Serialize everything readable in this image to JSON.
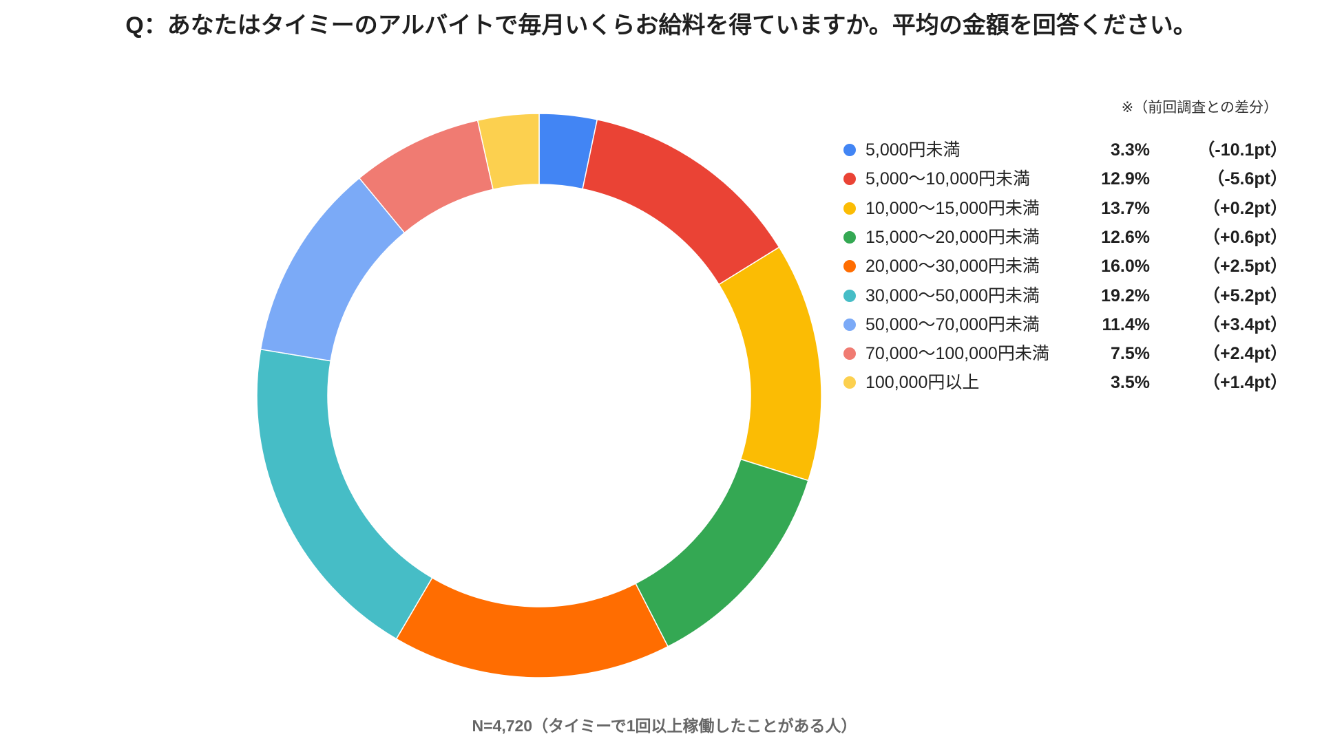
{
  "chart_data": {
    "type": "pie",
    "donut": true,
    "legend_position": "right",
    "title": "Q：あなたはタイミーのアルバイトで毎月いくらお給料を得ていますか。平均の金額を回答ください。",
    "note": "※（前回調査との差分）",
    "footnote": "N=4,720（タイミーで1回以上稼働したことがある人）",
    "categories": [
      "5,000円未満",
      "5,000〜10,000円未満",
      "10,000〜15,000円未満",
      "15,000〜20,000円未満",
      "20,000〜30,000円未満",
      "30,000〜50,000円未満",
      "50,000〜70,000円未満",
      "70,000〜100,000円未満",
      "100,000円以上"
    ],
    "values": [
      3.3,
      12.9,
      13.7,
      12.6,
      16.0,
      19.2,
      11.4,
      7.5,
      3.5
    ],
    "value_labels": [
      "3.3%",
      "12.9%",
      "13.7%",
      "12.6%",
      "16.0%",
      "19.2%",
      "11.4%",
      "7.5%",
      "3.5%"
    ],
    "diff_labels": [
      "（-10.1pt）",
      "（-5.6pt）",
      "（+0.2pt）",
      "（+0.6pt）",
      "（+2.5pt）",
      "（+5.2pt）",
      "（+3.4pt）",
      "（+2.4pt）",
      "（+1.4pt）"
    ],
    "colors": [
      "#4285F4",
      "#EA4335",
      "#FBBC04",
      "#34A853",
      "#FF6D01",
      "#46BDC6",
      "#7BAAF7",
      "#F07B72",
      "#FCD04F"
    ]
  }
}
